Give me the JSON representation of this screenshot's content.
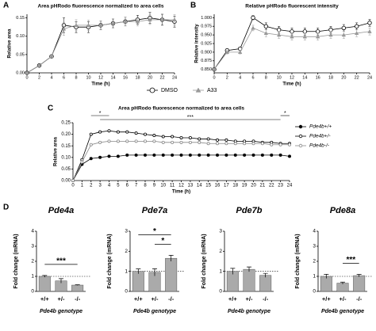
{
  "chart_data": [
    {
      "type": "line",
      "panel_label": "A",
      "title": "Area pHRodo fluorescence normalized to area cells",
      "xlabel": "Time (h)",
      "ylabel": "Relative area",
      "x": [
        0,
        2,
        4,
        6,
        8,
        10,
        12,
        14,
        16,
        18,
        20,
        22,
        24
      ],
      "xlim": [
        0,
        24
      ],
      "xticks": [
        0,
        2,
        4,
        6,
        8,
        10,
        12,
        14,
        16,
        18,
        20,
        22,
        24
      ],
      "ylim": [
        0,
        0.16
      ],
      "yticks": [
        {
          "value": 0,
          "label": "0.00"
        },
        {
          "value": 0.05,
          "label": "0.05"
        },
        {
          "value": 0.1,
          "label": "0.10"
        },
        {
          "value": 0.15,
          "label": "0.15"
        }
      ],
      "legend": "bottom",
      "series": [
        {
          "name": "DMSO",
          "color": "#000000",
          "marker": "circle-open",
          "values": [
            0.0,
            0.02,
            0.045,
            0.13,
            0.125,
            0.125,
            0.13,
            0.135,
            0.14,
            0.145,
            0.15,
            0.145,
            0.14
          ],
          "errors": [
            0.002,
            0.003,
            0.004,
            0.02,
            0.015,
            0.015,
            0.012,
            0.012,
            0.012,
            0.012,
            0.015,
            0.015,
            0.015
          ]
        },
        {
          "name": "A33",
          "color": "#999999",
          "marker": "triangle",
          "values": [
            0.0,
            0.02,
            0.045,
            0.12,
            0.13,
            0.13,
            0.13,
            0.135,
            0.14,
            0.14,
            0.145,
            0.145,
            0.145
          ],
          "errors": [
            0.002,
            0.003,
            0.004,
            0.018,
            0.015,
            0.014,
            0.012,
            0.012,
            0.012,
            0.012,
            0.013,
            0.014,
            0.014
          ]
        }
      ]
    },
    {
      "type": "line",
      "panel_label": "B",
      "title": "Relative pHRodo fluorescent intensity",
      "xlabel": "Time (h)",
      "ylabel": "Relative intensity",
      "x": [
        0,
        2,
        4,
        6,
        8,
        10,
        12,
        14,
        16,
        18,
        20,
        22,
        24
      ],
      "xlim": [
        0,
        24
      ],
      "xticks": [
        0,
        2,
        4,
        6,
        8,
        10,
        12,
        14,
        16,
        18,
        20,
        22,
        24
      ],
      "ylim": [
        0.84,
        1.01
      ],
      "yticks": [
        {
          "value": 0.85,
          "label": "0.850"
        },
        {
          "value": 0.875,
          "label": "0.875"
        },
        {
          "value": 0.9,
          "label": "0.900"
        },
        {
          "value": 0.925,
          "label": "0.925"
        },
        {
          "value": 0.95,
          "label": "0.950"
        },
        {
          "value": 0.975,
          "label": "0.975"
        },
        {
          "value": 1.0,
          "label": "1.000"
        }
      ],
      "series": [
        {
          "name": "DMSO",
          "color": "#000000",
          "marker": "circle-open",
          "values": [
            0.85,
            0.905,
            0.91,
            1.0,
            0.975,
            0.965,
            0.96,
            0.96,
            0.96,
            0.965,
            0.97,
            0.975,
            0.985
          ],
          "errors": [
            0.001,
            0.005,
            0.005,
            0.006,
            0.01,
            0.01,
            0.01,
            0.01,
            0.01,
            0.01,
            0.01,
            0.01,
            0.01
          ]
        },
        {
          "name": "A33",
          "color": "#999999",
          "marker": "triangle",
          "values": [
            0.85,
            0.9,
            0.9,
            0.97,
            0.955,
            0.95,
            0.945,
            0.945,
            0.945,
            0.95,
            0.95,
            0.955,
            0.96
          ],
          "errors": [
            0.001,
            0.005,
            0.005,
            0.008,
            0.01,
            0.01,
            0.01,
            0.01,
            0.01,
            0.01,
            0.01,
            0.01,
            0.01
          ]
        }
      ]
    },
    {
      "type": "line",
      "panel_label": "C",
      "title": "Area pHRodo fluorescence normalized to area cells",
      "xlabel": "Time (h)",
      "ylabel": "Relative area",
      "x": [
        0,
        1,
        2,
        3,
        4,
        5,
        6,
        7,
        8,
        9,
        10,
        11,
        12,
        13,
        14,
        15,
        16,
        17,
        18,
        19,
        20,
        21,
        22,
        23,
        24
      ],
      "xlim": [
        0,
        24
      ],
      "xticks": [
        0,
        1,
        2,
        3,
        4,
        5,
        6,
        7,
        8,
        9,
        10,
        11,
        12,
        13,
        14,
        15,
        16,
        17,
        18,
        19,
        20,
        21,
        22,
        23,
        24
      ],
      "ylim": [
        0,
        0.25
      ],
      "yticks": [
        {
          "value": 0,
          "label": "0.00"
        },
        {
          "value": 0.05,
          "label": "0.05"
        },
        {
          "value": 0.1,
          "label": "0.10"
        },
        {
          "value": 0.15,
          "label": "0.15"
        },
        {
          "value": 0.2,
          "label": "0.20"
        },
        {
          "value": 0.25,
          "label": "0.25"
        }
      ],
      "legend": "right",
      "annotations": [
        {
          "text": "*",
          "x": [
            2,
            4
          ]
        },
        {
          "text": "***",
          "x": [
            3,
            23
          ]
        },
        {
          "text": "*",
          "x": [
            23,
            24
          ]
        }
      ],
      "series": [
        {
          "name": "Pde4b+/+",
          "color": "#000000",
          "marker": "circle-filled",
          "values": [
            0,
            0.07,
            0.095,
            0.1,
            0.105,
            0.105,
            0.11,
            0.11,
            0.11,
            0.11,
            0.11,
            0.11,
            0.11,
            0.11,
            0.11,
            0.11,
            0.11,
            0.11,
            0.11,
            0.11,
            0.11,
            0.11,
            0.11,
            0.11,
            0.105
          ]
        },
        {
          "name": "Pde4b+/-",
          "color": "#000000",
          "marker": "circle-open",
          "values": [
            0,
            0.09,
            0.2,
            0.21,
            0.215,
            0.21,
            0.21,
            0.205,
            0.2,
            0.195,
            0.19,
            0.19,
            0.185,
            0.185,
            0.18,
            0.18,
            0.175,
            0.175,
            0.17,
            0.17,
            0.17,
            0.165,
            0.165,
            0.16,
            0.16
          ]
        },
        {
          "name": "Pde4b-/-",
          "color": "#888888",
          "marker": "circle-open",
          "values": [
            0,
            0.08,
            0.155,
            0.165,
            0.17,
            0.17,
            0.17,
            0.17,
            0.17,
            0.17,
            0.165,
            0.165,
            0.165,
            0.165,
            0.165,
            0.16,
            0.16,
            0.16,
            0.16,
            0.16,
            0.16,
            0.16,
            0.155,
            0.155,
            0.155
          ]
        }
      ]
    },
    {
      "type": "bar",
      "panel_label": "D",
      "title": "Pde4a",
      "xlabel": "Pde4b genotype",
      "ylabel": "Fold change (mRNA)",
      "categories": [
        "+/+",
        "+/-",
        "-/-"
      ],
      "values": [
        1.0,
        0.7,
        0.42
      ],
      "errors": [
        0.06,
        0.15,
        0.02
      ],
      "colors": [
        "#aaaaaa",
        "#aaaaaa",
        "#aaaaaa"
      ],
      "ylim": [
        0,
        4
      ],
      "yticks": [
        0,
        1,
        2,
        3,
        4
      ],
      "annotations": [
        {
          "text": "***",
          "between": [
            0,
            2
          ]
        }
      ]
    },
    {
      "type": "bar",
      "title": "Pde7a",
      "xlabel": "Pde4b genotype",
      "ylabel": "Fold change (mRNA)",
      "categories": [
        "+/+",
        "+/-",
        "-/-"
      ],
      "values": [
        1.0,
        0.95,
        1.65
      ],
      "errors": [
        0.12,
        0.18,
        0.15
      ],
      "colors": [
        "#aaaaaa",
        "#aaaaaa",
        "#aaaaaa"
      ],
      "ylim": [
        0,
        3
      ],
      "yticks": [
        0,
        1,
        2,
        3
      ],
      "annotations": [
        {
          "text": "*",
          "between": [
            1,
            2
          ]
        },
        {
          "text": "*",
          "between": [
            0,
            2
          ]
        }
      ]
    },
    {
      "type": "bar",
      "title": "Pde7b",
      "xlabel": "Pde4b genotype",
      "ylabel": "Fold change (mRNA)",
      "categories": [
        "+/+",
        "+/-",
        "-/-"
      ],
      "values": [
        1.0,
        1.1,
        0.8
      ],
      "errors": [
        0.15,
        0.12,
        0.1
      ],
      "colors": [
        "#aaaaaa",
        "#aaaaaa",
        "#aaaaaa"
      ],
      "ylim": [
        0,
        3
      ],
      "yticks": [
        0,
        1,
        2,
        3
      ]
    },
    {
      "type": "bar",
      "title": "Pde8a",
      "xlabel": "Pde4b genotype",
      "ylabel": "Fold change (mRNA)",
      "categories": [
        "+/+",
        "+/-",
        "-/-"
      ],
      "values": [
        1.0,
        0.55,
        1.05
      ],
      "errors": [
        0.14,
        0.07,
        0.08
      ],
      "colors": [
        "#aaaaaa",
        "#aaaaaa",
        "#aaaaaa"
      ],
      "ylim": [
        0,
        4
      ],
      "yticks": [
        0,
        1,
        2,
        3,
        4
      ],
      "annotations": [
        {
          "text": "***",
          "between": [
            1,
            2
          ]
        }
      ]
    }
  ]
}
